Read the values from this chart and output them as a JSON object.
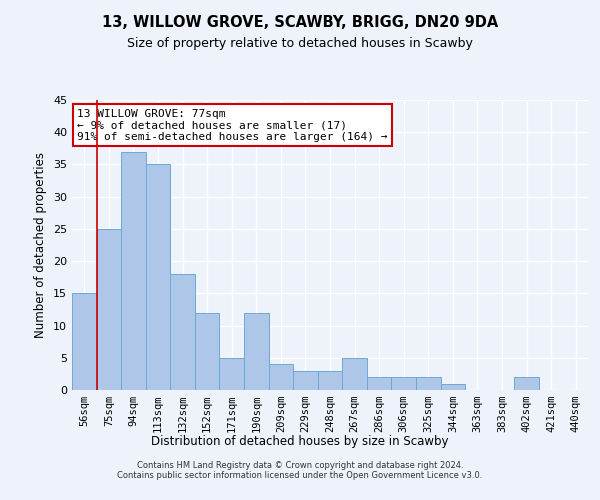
{
  "title": "13, WILLOW GROVE, SCAWBY, BRIGG, DN20 9DA",
  "subtitle": "Size of property relative to detached houses in Scawby",
  "xlabel": "Distribution of detached houses by size in Scawby",
  "ylabel": "Number of detached properties",
  "categories": [
    "56sqm",
    "75sqm",
    "94sqm",
    "113sqm",
    "132sqm",
    "152sqm",
    "171sqm",
    "190sqm",
    "209sqm",
    "229sqm",
    "248sqm",
    "267sqm",
    "286sqm",
    "306sqm",
    "325sqm",
    "344sqm",
    "363sqm",
    "383sqm",
    "402sqm",
    "421sqm",
    "440sqm"
  ],
  "values": [
    15,
    25,
    37,
    35,
    18,
    12,
    5,
    12,
    4,
    3,
    3,
    5,
    2,
    2,
    2,
    1,
    0,
    0,
    2,
    0,
    0
  ],
  "bar_color": "#aec6e8",
  "bar_edgecolor": "#6aaad4",
  "highlight_index": 1,
  "highlight_color": "#cc0000",
  "ylim": [
    0,
    45
  ],
  "yticks": [
    0,
    5,
    10,
    15,
    20,
    25,
    30,
    35,
    40,
    45
  ],
  "annotation_box_text": "13 WILLOW GROVE: 77sqm\n← 9% of detached houses are smaller (17)\n91% of semi-detached houses are larger (164) →",
  "footer_text": "Contains HM Land Registry data © Crown copyright and database right 2024.\nContains public sector information licensed under the Open Government Licence v3.0.",
  "background_color": "#eef2fb",
  "grid_color": "#ffffff",
  "fig_width": 6.0,
  "fig_height": 5.0,
  "title_fontsize": 10.5,
  "subtitle_fontsize": 9,
  "ylabel_fontsize": 8.5,
  "xlabel_fontsize": 8.5,
  "tick_fontsize": 7.5,
  "ann_fontsize": 8,
  "footer_fontsize": 6
}
